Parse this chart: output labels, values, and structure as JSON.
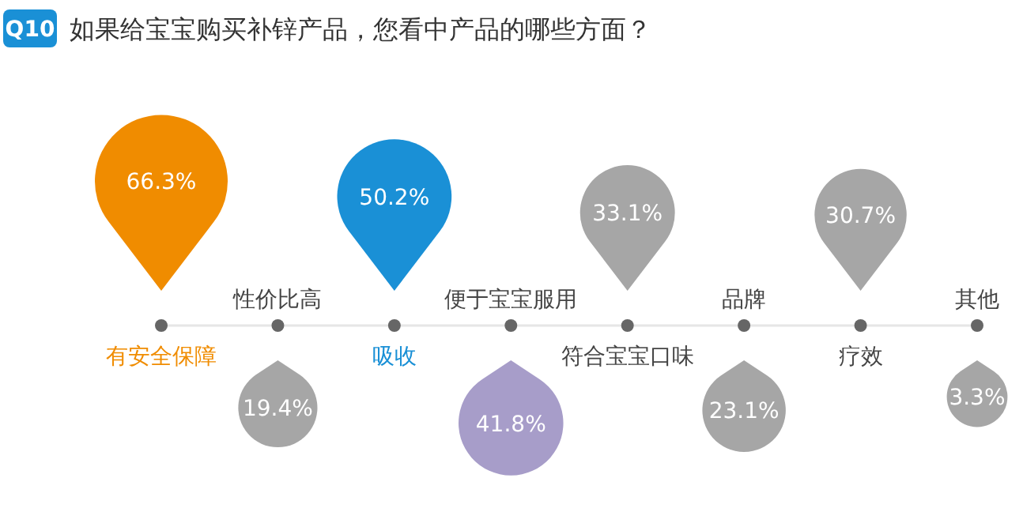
{
  "chart_data": {
    "type": "other",
    "title": "如果给宝宝购买补锌产品，您看中产品的哪些方面？",
    "annotations": [
      "Q10"
    ],
    "categories": [
      "有安全保障",
      "性价比高",
      "吸收",
      "便于宝宝服用",
      "符合宝宝口味",
      "品牌",
      "疗效",
      "其他"
    ],
    "values": [
      66.3,
      19.4,
      50.2,
      41.8,
      33.1,
      23.1,
      30.7,
      3.3
    ],
    "value_labels": [
      "66.3%",
      "19.4%",
      "50.2%",
      "41.8%",
      "33.1%",
      "23.1%",
      "30.7%",
      "3.3%"
    ],
    "colors": [
      "#f08c00",
      "#a6a6a6",
      "#1a90d6",
      "#a79dc9",
      "#a6a6a6",
      "#a6a6a6",
      "#a6a6a6",
      "#a6a6a6"
    ]
  }
}
